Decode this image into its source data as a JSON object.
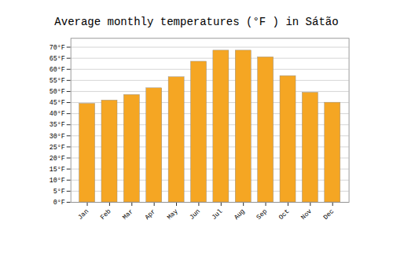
{
  "chart_data": {
    "type": "bar",
    "title": "Average monthly temperatures (°F ) in Sátão",
    "categories": [
      "Jan",
      "Feb",
      "Mar",
      "Apr",
      "May",
      "Jun",
      "Jul",
      "Aug",
      "Sep",
      "Oct",
      "Nov",
      "Dec"
    ],
    "values": [
      44.5,
      46.0,
      48.5,
      51.5,
      56.5,
      63.5,
      68.5,
      68.5,
      65.5,
      57.0,
      49.5,
      45.0
    ],
    "color": "#F5A623",
    "ylim": [
      0,
      74
    ],
    "yticks": [
      {
        "value": 0,
        "label": "0°F"
      },
      {
        "value": 5,
        "label": "5°F"
      },
      {
        "value": 10,
        "label": "10°F"
      },
      {
        "value": 15,
        "label": "15°F"
      },
      {
        "value": 20,
        "label": "20°F"
      },
      {
        "value": 25,
        "label": "25°F"
      },
      {
        "value": 30,
        "label": "30°F"
      },
      {
        "value": 35,
        "label": "35°F"
      },
      {
        "value": 40,
        "label": "40°F"
      },
      {
        "value": 45,
        "label": "45°F"
      },
      {
        "value": 50,
        "label": "50°F"
      },
      {
        "value": 55,
        "label": "55°F"
      },
      {
        "value": 60,
        "label": "60°F"
      },
      {
        "value": 65,
        "label": "65°F"
      },
      {
        "value": 70,
        "label": "70°F"
      }
    ],
    "grid": true
  }
}
